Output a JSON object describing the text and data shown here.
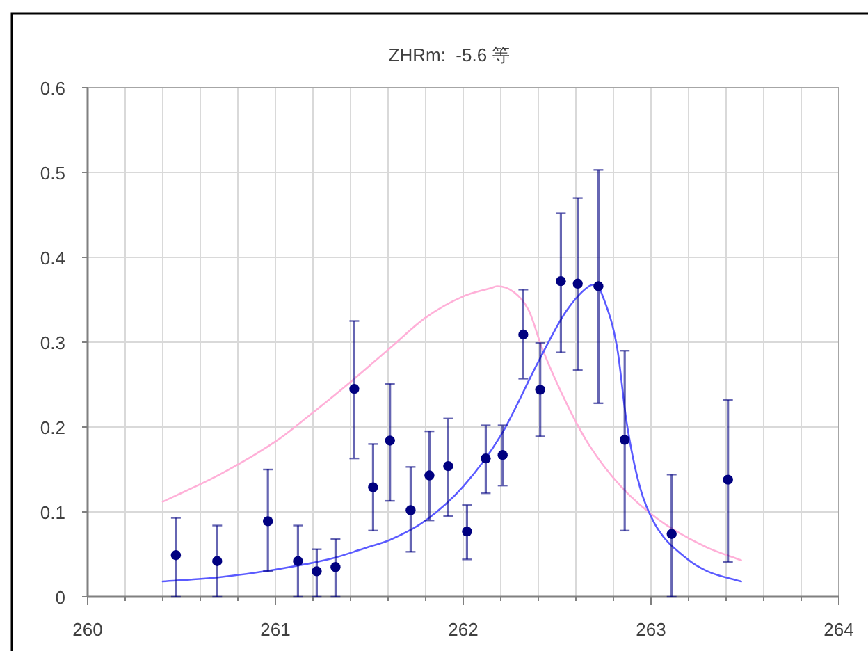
{
  "chart_data": {
    "type": "scatter",
    "title": "ZHRm:  -5.6 等",
    "xlim": [
      260,
      264
    ],
    "ylim": [
      0,
      0.6
    ],
    "xticks": [
      260,
      {
        "value": 260.2,
        "label": null
      },
      {
        "value": 260.4,
        "label": null
      },
      {
        "value": 260.6,
        "label": null
      },
      {
        "value": 260.8,
        "label": null
      },
      261,
      {
        "value": 261.2,
        "label": null
      },
      {
        "value": 261.4,
        "label": null
      },
      {
        "value": 261.6,
        "label": null
      },
      {
        "value": 261.8,
        "label": null
      },
      262,
      {
        "value": 262.2,
        "label": null
      },
      {
        "value": 262.4,
        "label": null
      },
      {
        "value": 262.6,
        "label": null
      },
      {
        "value": 262.8,
        "label": null
      },
      263,
      {
        "value": 263.2,
        "label": null
      },
      {
        "value": 263.4,
        "label": null
      },
      {
        "value": 263.6,
        "label": null
      },
      {
        "value": 263.8,
        "label": null
      },
      264
    ],
    "yticks": [
      0,
      0.1,
      0.2,
      0.3,
      0.4,
      0.5,
      0.6
    ],
    "grid": true,
    "marker": "circle",
    "series": [
      {
        "type": "line",
        "color": "#ffb0d8",
        "marker": "none",
        "x": [
          260.4,
          260.72,
          261.02,
          261.16,
          261.41,
          261.61,
          261.8,
          262.0,
          262.15,
          262.18,
          262.27,
          262.35,
          262.42,
          262.55,
          262.67,
          262.84,
          263.04,
          263.29,
          263.48
        ],
        "values": [
          0.112,
          0.146,
          0.186,
          0.21,
          0.255,
          0.293,
          0.329,
          0.354,
          0.364,
          0.366,
          0.359,
          0.337,
          0.293,
          0.228,
          0.179,
          0.13,
          0.091,
          0.059,
          0.043
        ]
      },
      {
        "type": "line",
        "color": "#5a5aff",
        "marker": "none",
        "x": [
          260.4,
          260.7,
          261.0,
          261.3,
          261.5,
          261.61,
          261.8,
          262.0,
          262.2,
          262.4,
          262.55,
          262.67,
          262.71,
          262.74,
          262.82,
          262.87,
          262.94,
          263.02,
          263.19,
          263.3,
          263.48
        ],
        "values": [
          0.018,
          0.023,
          0.032,
          0.045,
          0.059,
          0.067,
          0.09,
          0.13,
          0.19,
          0.277,
          0.337,
          0.366,
          0.368,
          0.356,
          0.293,
          0.206,
          0.13,
          0.086,
          0.045,
          0.03,
          0.018
        ]
      },
      {
        "color": "#000080",
        "x": [
          260.47,
          260.69,
          260.96,
          261.12,
          261.22,
          261.32,
          261.42,
          261.52,
          261.61,
          261.72,
          261.82,
          261.92,
          262.02,
          262.12,
          262.21,
          262.32,
          262.41,
          262.52,
          262.61,
          262.72,
          262.86,
          263.11,
          263.41
        ],
        "values": [
          0.049,
          0.042,
          0.089,
          0.042,
          0.03,
          0.035,
          0.245,
          0.129,
          0.184,
          0.102,
          0.143,
          0.154,
          0.077,
          0.163,
          0.167,
          0.309,
          0.244,
          0.372,
          0.369,
          0.366,
          0.185,
          0.074,
          0.138
        ],
        "errors": [
          [
            0,
            0.093
          ],
          [
            0,
            0.084
          ],
          [
            0.03,
            0.15
          ],
          [
            0,
            0.084
          ],
          [
            0,
            0.056
          ],
          [
            0,
            0.068
          ],
          [
            0.163,
            0.325
          ],
          [
            0.078,
            0.18
          ],
          [
            0.113,
            0.251
          ],
          [
            0.053,
            0.153
          ],
          [
            0.09,
            0.195
          ],
          [
            0.095,
            0.21
          ],
          [
            0.044,
            0.108
          ],
          [
            0.122,
            0.202
          ],
          [
            0.131,
            0.202
          ],
          [
            0.257,
            0.362
          ],
          [
            0.189,
            0.299
          ],
          [
            0.288,
            0.452
          ],
          [
            0.267,
            0.47
          ],
          [
            0.228,
            0.503
          ],
          [
            0.078,
            0.29
          ],
          [
            0,
            0.144
          ],
          [
            0.041,
            0.232
          ]
        ]
      }
    ]
  }
}
